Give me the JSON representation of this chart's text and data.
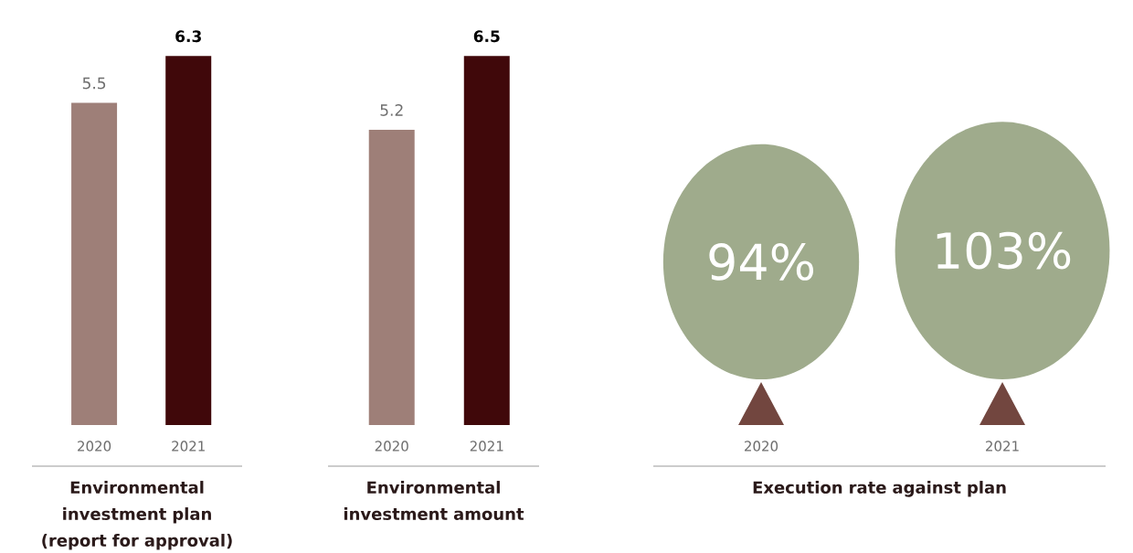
{
  "chart_data": [
    {
      "type": "bar",
      "title": "Environmental investment plan (report for approval)",
      "categories": [
        "2020",
        "2021"
      ],
      "values": [
        5.5,
        6.3
      ],
      "colors": [
        "#9e7f78",
        "#40080a"
      ],
      "data_labels": true
    },
    {
      "type": "bar",
      "title": "Environmental investment amount",
      "categories": [
        "2020",
        "2021"
      ],
      "values": [
        5.2,
        6.5
      ],
      "colors": [
        "#9e7f78",
        "#40080a"
      ],
      "data_labels": true
    },
    {
      "type": "other",
      "title": "Execution rate against plan",
      "categories": [
        "2020",
        "2021"
      ],
      "values": [
        94,
        103
      ],
      "value_labels": [
        "94%",
        "103%"
      ],
      "color": "#9fab8c"
    }
  ]
}
